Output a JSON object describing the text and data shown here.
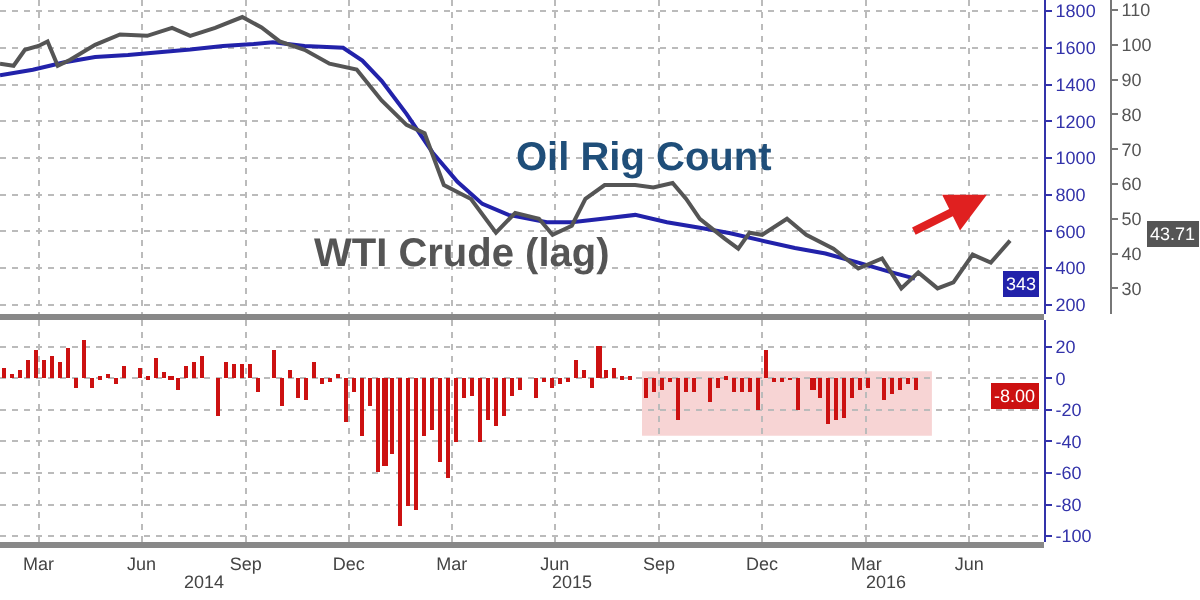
{
  "chart_data": [
    {
      "type": "line",
      "xlim": [
        "2014-02-10",
        "2016-08-20"
      ],
      "ylim": [
        150,
        1860
      ],
      "yticks": [
        200,
        400,
        600,
        800,
        1000,
        1200,
        1400,
        1600,
        1800
      ],
      "y2lim": [
        22.6,
        112.9
      ],
      "y2ticks": [
        30,
        40,
        50,
        60,
        70,
        80,
        90,
        100,
        110
      ],
      "grid": true,
      "tick_labels": "y",
      "xticks": [
        {
          "value": "2014-03-16",
          "label": null
        },
        {
          "value": "2014-06-15",
          "label": null
        },
        {
          "value": "2014-09-15",
          "label": null
        },
        {
          "value": "2014-12-15",
          "label": null
        },
        {
          "value": "2015-03-16",
          "label": null
        },
        {
          "value": "2015-06-15",
          "label": null
        },
        {
          "value": "2015-09-15",
          "label": null
        },
        {
          "value": "2015-12-15",
          "label": null
        },
        {
          "value": "2016-03-16",
          "label": null
        },
        {
          "value": "2016-06-15",
          "label": null
        }
      ],
      "series": [
        {
          "name": "Oil Rig Count",
          "color": "#2222aa",
          "x": [
            "2014-02-10",
            "2014-03-11",
            "2014-04-07",
            "2014-05-05",
            "2014-06-03",
            "2014-07-28",
            "2014-08-26",
            "2014-09-22",
            "2014-10-09",
            "2014-11-06",
            "2014-12-10",
            "2014-12-27",
            "2015-01-13",
            "2015-02-04",
            "2015-02-27",
            "2015-03-21",
            "2015-04-12",
            "2015-05-05",
            "2015-06-08",
            "2015-06-30",
            "2015-07-29",
            "2015-08-25",
            "2015-09-22",
            "2015-10-21",
            "2015-11-17",
            "2015-12-15",
            "2016-01-13",
            "2016-02-09",
            "2016-03-09",
            "2016-04-06",
            "2016-04-28"
          ],
          "values": [
            1450,
            1480,
            1520,
            1550,
            1560,
            1590,
            1610,
            1620,
            1630,
            1610,
            1600,
            1530,
            1420,
            1240,
            1030,
            870,
            750,
            690,
            650,
            650,
            670,
            690,
            650,
            620,
            590,
            550,
            510,
            480,
            430,
            380,
            343
          ]
        },
        {
          "name": "WTI Crude (lag)",
          "color": "#555555",
          "axis": "y2",
          "x": [
            "2014-02-10",
            "2014-02-22",
            "2014-03-04",
            "2014-03-16",
            "2014-03-24",
            "2014-04-02",
            "2014-04-13",
            "2014-05-05",
            "2014-05-27",
            "2014-06-20",
            "2014-07-12",
            "2014-07-28",
            "2014-08-19",
            "2014-09-12",
            "2014-09-29",
            "2014-10-15",
            "2014-11-06",
            "2014-11-28",
            "2014-12-22",
            "2015-01-13",
            "2015-02-04",
            "2015-02-20",
            "2015-03-09",
            "2015-04-02",
            "2015-04-24",
            "2015-05-11",
            "2015-06-01",
            "2015-06-13",
            "2015-06-30",
            "2015-07-12",
            "2015-07-29",
            "2015-08-25",
            "2015-09-10",
            "2015-09-27",
            "2015-10-09",
            "2015-10-21",
            "2015-11-12",
            "2015-11-24",
            "2015-12-04",
            "2015-12-15",
            "2016-01-06",
            "2016-01-23",
            "2016-02-16",
            "2016-03-09",
            "2016-03-30",
            "2016-04-16",
            "2016-05-01",
            "2016-05-18",
            "2016-06-01",
            "2016-06-18",
            "2016-07-04",
            "2016-07-21"
          ],
          "values": [
            94.6,
            94,
            98.6,
            99.7,
            101,
            94,
            95.7,
            100,
            103,
            102.6,
            104.9,
            102.6,
            104.9,
            108,
            105,
            101,
            98.6,
            94.6,
            92.9,
            84,
            77,
            74.6,
            59.7,
            55.7,
            46,
            51.7,
            50,
            45.4,
            48,
            55.7,
            59.7,
            59.7,
            59,
            60.3,
            55.7,
            50,
            44.3,
            41.4,
            46,
            45.4,
            50,
            45.4,
            41.4,
            35.7,
            38.6,
            30,
            34.6,
            30,
            31.7,
            39.7,
            37.4,
            43.71
          ]
        }
      ],
      "annotations": [
        "343",
        "43.71"
      ]
    },
    {
      "type": "bar",
      "color": "#cc1111",
      "xlim": [
        "2014-02-10",
        "2016-08-20"
      ],
      "ylim": [
        -104,
        37
      ],
      "yticks": [
        20,
        0,
        -20,
        -40,
        -60,
        -80,
        -100
      ],
      "grid": true,
      "xticks": [
        {
          "value": "2014-03-16",
          "label": "Mar"
        },
        {
          "value": "2014-06-15",
          "label": "Jun"
        },
        {
          "value": "2014-09-15",
          "label": "Sep"
        },
        {
          "value": "2014-12-15",
          "label": "Dec"
        },
        {
          "value": "2015-03-16",
          "label": "Mar"
        },
        {
          "value": "2015-06-15",
          "label": "Jun"
        },
        {
          "value": "2015-09-15",
          "label": "Sep"
        },
        {
          "value": "2015-12-15",
          "label": "Dec"
        },
        {
          "value": "2016-03-16",
          "label": "Mar"
        },
        {
          "value": "2016-06-15",
          "label": "Jun"
        }
      ],
      "x": [
        "2014-02-14",
        "2014-02-21",
        "2014-02-28",
        "2014-03-07",
        "2014-03-14",
        "2014-03-21",
        "2014-03-28",
        "2014-04-04",
        "2014-04-11",
        "2014-04-18",
        "2014-04-25",
        "2014-05-02",
        "2014-05-09",
        "2014-05-16",
        "2014-05-23",
        "2014-05-30",
        "2014-06-06",
        "2014-06-13",
        "2014-06-20",
        "2014-06-27",
        "2014-07-04",
        "2014-07-11",
        "2014-07-18",
        "2014-07-25",
        "2014-08-01",
        "2014-08-08",
        "2014-08-15",
        "2014-08-22",
        "2014-08-29",
        "2014-09-05",
        "2014-09-12",
        "2014-09-19",
        "2014-09-26",
        "2014-10-03",
        "2014-10-10",
        "2014-10-17",
        "2014-10-24",
        "2014-10-31",
        "2014-11-07",
        "2014-11-14",
        "2014-11-21",
        "2014-11-28",
        "2014-12-05",
        "2014-12-12",
        "2014-12-19",
        "2014-12-26",
        "2015-01-02",
        "2015-01-09",
        "2015-01-16",
        "2015-01-23",
        "2015-01-30",
        "2015-02-06",
        "2015-02-13",
        "2015-02-20",
        "2015-02-27",
        "2015-03-06",
        "2015-03-13",
        "2015-03-20",
        "2015-03-27",
        "2015-04-03",
        "2015-04-10",
        "2015-04-17",
        "2015-04-24",
        "2015-05-01",
        "2015-05-08",
        "2015-05-15",
        "2015-05-22",
        "2015-05-29",
        "2015-06-05",
        "2015-06-12",
        "2015-06-19",
        "2015-06-26",
        "2015-07-03",
        "2015-07-10",
        "2015-07-17",
        "2015-07-24",
        "2015-07-31",
        "2015-08-07",
        "2015-08-14",
        "2015-08-21",
        "2015-08-28",
        "2015-09-04",
        "2015-09-11",
        "2015-09-18",
        "2015-09-25",
        "2015-10-02",
        "2015-10-09",
        "2015-10-16",
        "2015-10-23",
        "2015-10-30",
        "2015-11-06",
        "2015-11-13",
        "2015-11-20",
        "2015-11-27",
        "2015-12-04",
        "2015-12-11",
        "2015-12-18",
        "2015-12-25",
        "2016-01-01",
        "2016-01-08",
        "2016-01-15",
        "2016-01-22",
        "2016-01-29",
        "2016-02-05",
        "2016-02-12",
        "2016-02-19",
        "2016-02-26",
        "2016-03-04",
        "2016-03-11",
        "2016-03-18",
        "2016-03-25",
        "2016-04-01",
        "2016-04-08",
        "2016-04-15",
        "2016-04-22",
        "2016-04-29"
      ],
      "values": [
        6,
        3,
        5,
        12,
        18,
        12,
        14,
        11,
        19,
        -6,
        24,
        -6,
        1,
        3,
        -3,
        8,
        0,
        6,
        2,
        13,
        4,
        1,
        -8,
        8,
        11,
        14,
        0,
        -24,
        11,
        9,
        9,
        9,
        -9,
        0,
        18,
        -18,
        5,
        -12,
        -14,
        10,
        -4,
        -2,
        3,
        -28,
        -9,
        -37,
        -17,
        -60,
        -55,
        -48,
        -94,
        -81,
        -83,
        -36,
        -33,
        -53,
        -63,
        -40,
        -12,
        -11,
        -41,
        -26,
        -30,
        -24,
        -11,
        -8,
        0,
        -13,
        -2,
        -6,
        -3,
        -2,
        12,
        5,
        -6,
        21,
        5,
        6,
        2,
        1,
        0,
        -12,
        -9,
        -7,
        -2,
        -26,
        -9,
        -9,
        0,
        -15,
        -6,
        2,
        -9,
        -9,
        -9,
        -20,
        18,
        -2,
        -2,
        -1,
        -20,
        0,
        -8,
        -12,
        -29,
        -26,
        -25,
        -12,
        -8,
        -6,
        0,
        -14,
        -10,
        -7,
        -3,
        -8
      ],
      "bands": [
        {
          "axis": "x",
          "from": "2015-08-31",
          "to": "2016-05-13",
          "color": "#f2b8b8"
        }
      ],
      "annotations": [
        "-8.00",
        "2014",
        "2015",
        "2016"
      ]
    }
  ]
}
